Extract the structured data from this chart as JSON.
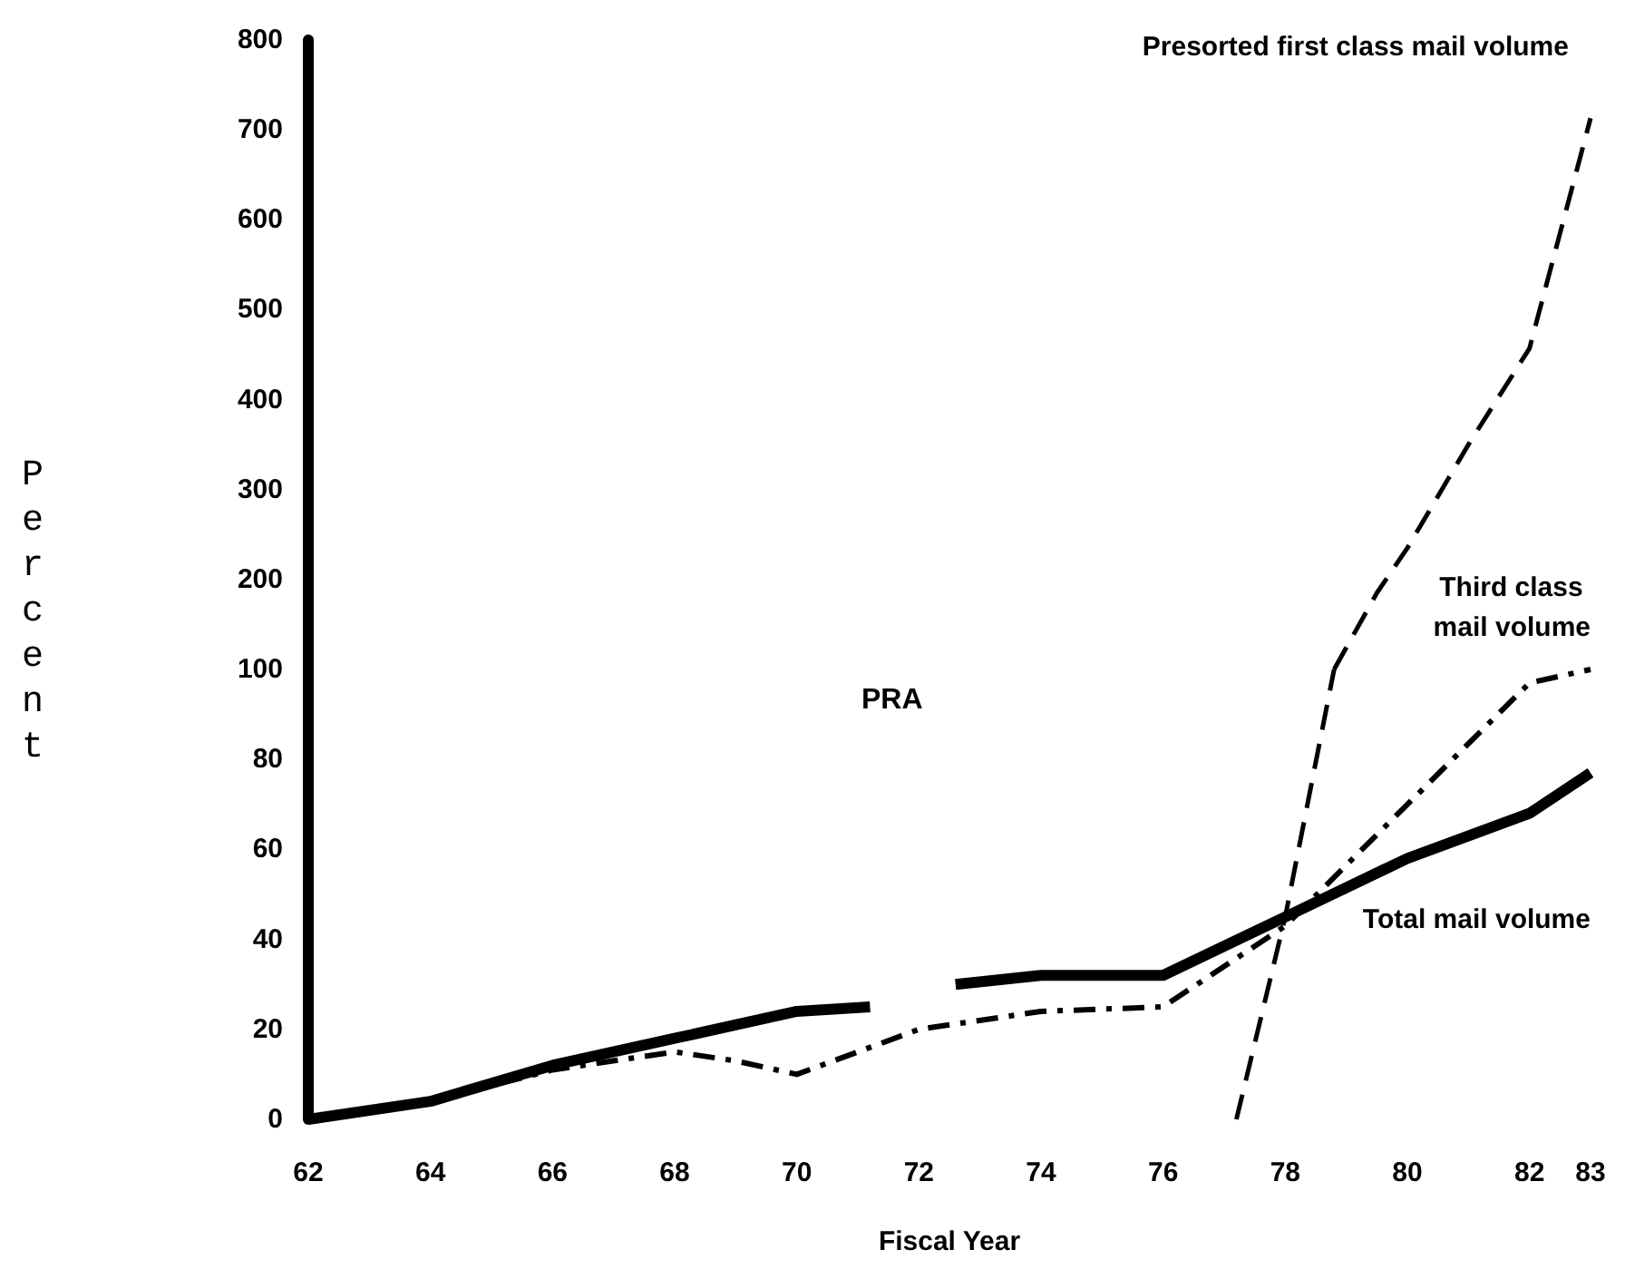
{
  "chart_data": [
    {
      "type": "line",
      "ylabel": "Percent",
      "xlim": [
        62,
        83
      ],
      "ylim": [
        100,
        800
      ],
      "yticks": [
        200,
        300,
        400,
        500,
        600,
        700,
        800
      ],
      "tick_labels": "y",
      "grid": false,
      "legend": false,
      "marker": "none",
      "series": [
        {
          "name": "Presorted first class mail volume",
          "color": "#000000",
          "line_style": "dashed",
          "x": [
            78.8,
            79.5,
            80,
            81,
            82,
            83
          ],
          "values": [
            100,
            185,
            235,
            350,
            457,
            713
          ]
        }
      ]
    },
    {
      "type": "line",
      "xlabel": "Fiscal Year",
      "xlim": [
        62,
        83
      ],
      "xticks": [
        62,
        64,
        66,
        68,
        70,
        72,
        74,
        76,
        78,
        80,
        82,
        83
      ],
      "ylim": [
        0,
        100
      ],
      "yticks": [
        0,
        20,
        40,
        60,
        80,
        100
      ],
      "grid": false,
      "legend": false,
      "marker": "none",
      "series": [
        {
          "color": "#000000",
          "line_style": "dashed",
          "x": [
            77.2,
            78,
            78.8
          ],
          "values": [
            0,
            45,
            100
          ]
        },
        {
          "name": "Third class mail volume",
          "color": "#000000",
          "line_style": "dashdot",
          "x": [
            62,
            64,
            66,
            68,
            69,
            70,
            72,
            74,
            76,
            78,
            80,
            82,
            83
          ],
          "values": [
            0,
            4,
            11,
            15,
            13,
            10,
            20,
            24,
            25,
            43,
            70,
            97,
            100
          ]
        },
        {
          "name": "Total mail volume",
          "color": "#000000",
          "line_style": "solid",
          "x": [
            62,
            64,
            66,
            68,
            70,
            71.2,
            71.9,
            72.6,
            74,
            76,
            78,
            80,
            82,
            83
          ],
          "values": [
            0,
            4,
            12,
            18,
            24,
            25,
            null,
            30,
            32,
            32,
            45,
            58,
            68,
            77
          ]
        }
      ],
      "annotations": [
        "PRA"
      ]
    }
  ]
}
